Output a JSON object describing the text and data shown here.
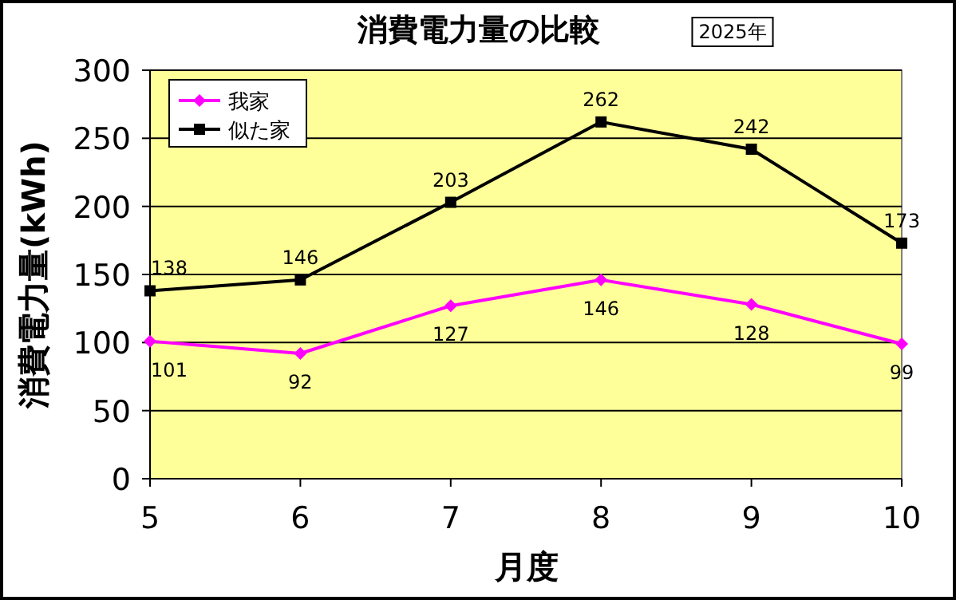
{
  "chart_data": {
    "type": "line",
    "title": "消費電力量の比較",
    "subtitle": "2025年",
    "xlabel": "月度",
    "ylabel": "消費電力量(kWh)",
    "x": [
      5,
      6,
      7,
      8,
      9,
      10
    ],
    "xlim": [
      5,
      10
    ],
    "xticks": [
      5,
      6,
      7,
      8,
      9,
      10
    ],
    "ylim": [
      0,
      300
    ],
    "yticks": [
      0,
      50,
      100,
      150,
      200,
      250,
      300
    ],
    "grid": "y",
    "legend": "top left",
    "data_labels": true,
    "series": [
      {
        "name": "我家",
        "color": "#ff00ff",
        "marker": "diamond",
        "values": [
          101,
          92,
          127,
          146,
          128,
          99
        ]
      },
      {
        "name": "似た家",
        "color": "#000000",
        "marker": "square",
        "values": [
          138,
          146,
          203,
          262,
          242,
          173
        ]
      }
    ]
  }
}
